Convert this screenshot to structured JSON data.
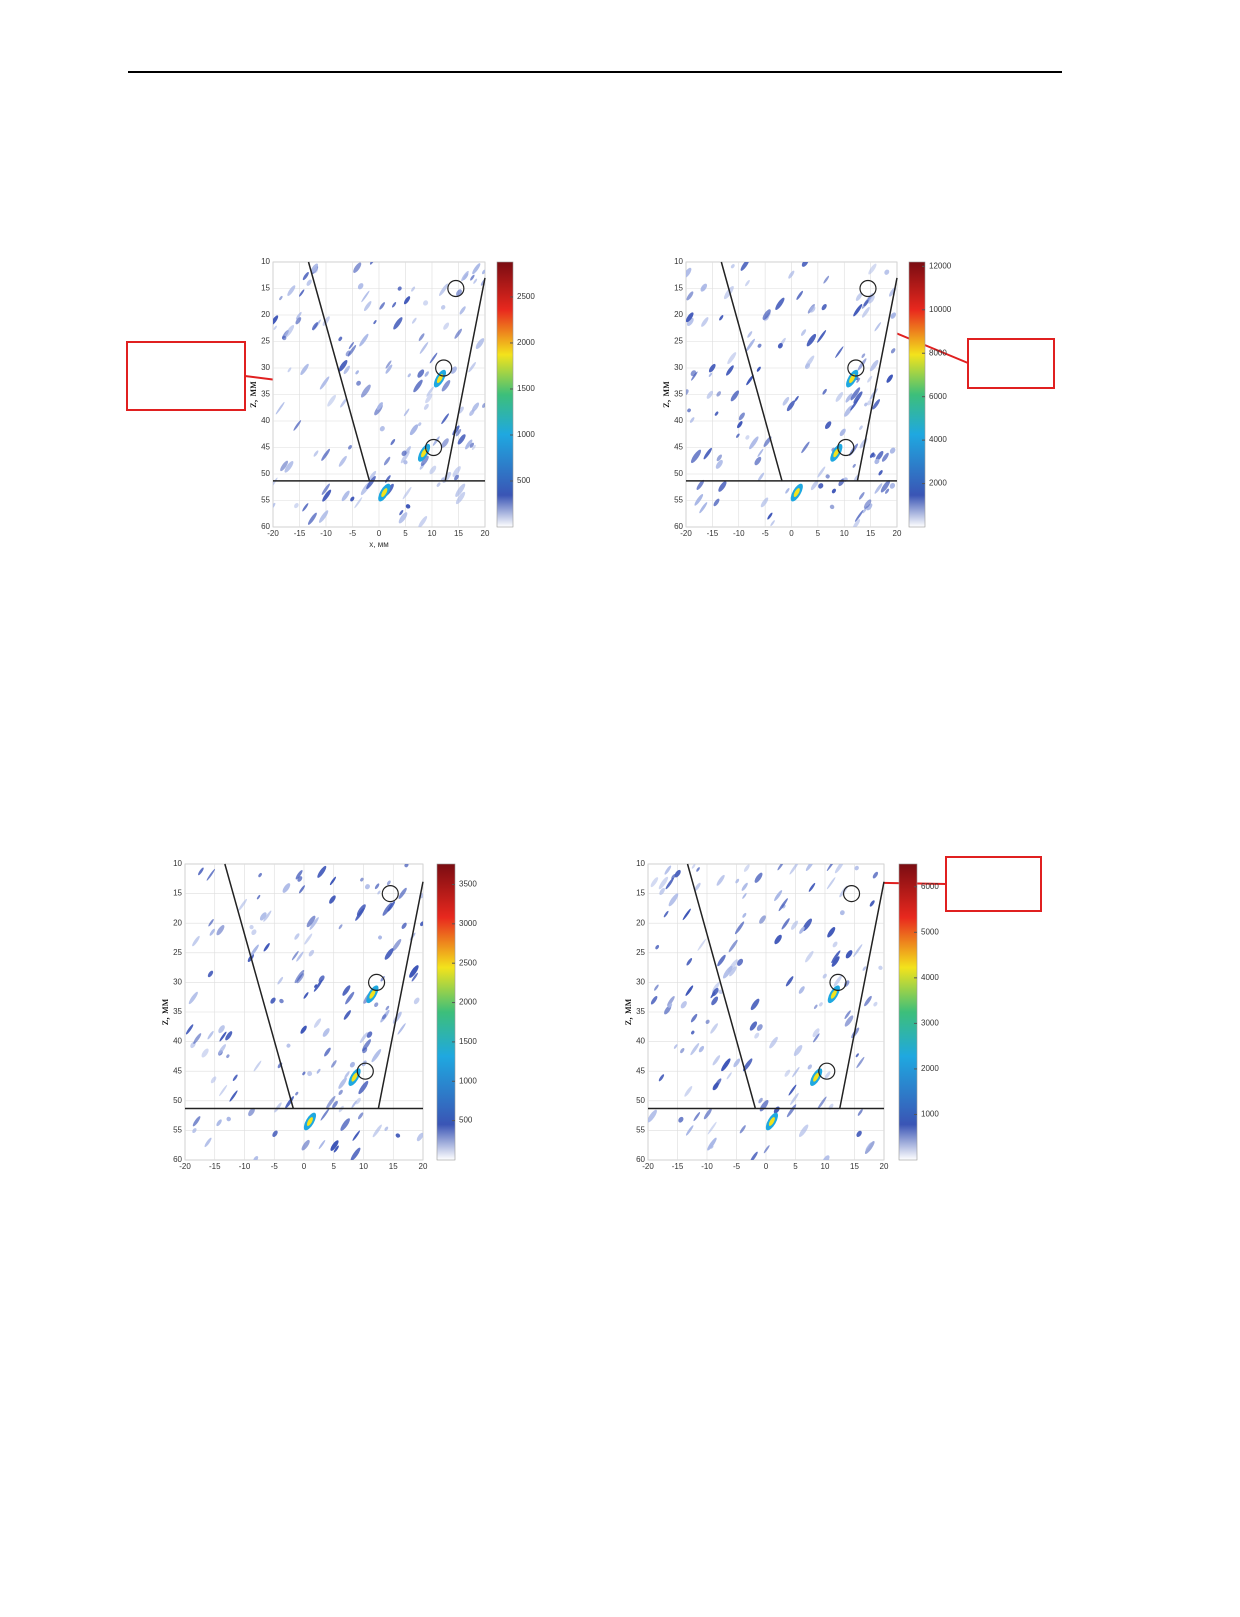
{
  "figures": [
    {
      "x_ticks": [
        -20,
        -15,
        -10,
        -5,
        0,
        5,
        10,
        15,
        20
      ],
      "z_ticks": [
        10,
        15,
        20,
        25,
        30,
        35,
        40,
        45,
        50,
        55,
        60
      ],
      "colorbar_ticks": [
        500,
        1000,
        1500,
        2000,
        2500
      ],
      "clim": [
        0,
        2880
      ],
      "x_label": "x, мм",
      "z_label": "z, мм"
    },
    {
      "x_ticks": [
        -20,
        -15,
        -10,
        -5,
        0,
        5,
        10,
        15,
        20
      ],
      "z_ticks": [
        10,
        15,
        20,
        25,
        30,
        35,
        40,
        45,
        50,
        55,
        60
      ],
      "colorbar_ticks": [
        2000,
        4000,
        6000,
        8000,
        10000,
        12000
      ],
      "clim": [
        0,
        12200
      ],
      "z_label": "z, мм"
    },
    {
      "x_ticks": [
        -20,
        -15,
        -10,
        -5,
        0,
        5,
        10,
        15,
        20
      ],
      "z_ticks": [
        10,
        15,
        20,
        25,
        30,
        35,
        40,
        45,
        50,
        55,
        60
      ],
      "colorbar_ticks": [
        500,
        1000,
        1500,
        2000,
        2500,
        3000,
        3500
      ],
      "clim": [
        0,
        3760
      ],
      "z_label": "z, мм"
    },
    {
      "x_ticks": [
        -20,
        -15,
        -10,
        -5,
        0,
        5,
        10,
        15,
        20
      ],
      "z_ticks": [
        10,
        15,
        20,
        25,
        30,
        35,
        40,
        45,
        50,
        55,
        60
      ],
      "colorbar_ticks": [
        1000,
        2000,
        3000,
        4000,
        5000,
        6000
      ],
      "clim": [
        0,
        6500
      ],
      "z_label": "z, мм"
    }
  ]
}
